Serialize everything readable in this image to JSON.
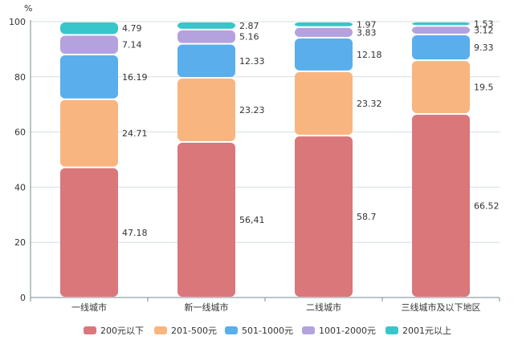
{
  "chart_data": {
    "type": "bar",
    "stacked": true,
    "ylabel": "%",
    "ylim": [
      0,
      100
    ],
    "yticks": [
      0,
      20,
      40,
      60,
      80,
      100
    ],
    "categories": [
      "一线城市",
      "新一线城市",
      "二线城市",
      "三线城市及以下地区"
    ],
    "series": [
      {
        "name": "200元以下",
        "color": "#D9777A",
        "values": [
          47.18,
          56.41,
          58.7,
          66.52
        ],
        "labels": [
          "47.18",
          "56,41",
          "58.7",
          "66.52"
        ]
      },
      {
        "name": "201-500元",
        "color": "#F9B580",
        "values": [
          24.71,
          23.23,
          23.32,
          19.5
        ],
        "labels": [
          "24.71",
          "23.23",
          "23.32",
          "19.5"
        ]
      },
      {
        "name": "501-1000元",
        "color": "#5AAEEC",
        "values": [
          16.19,
          12.33,
          12.18,
          9.33
        ],
        "labels": [
          "16.19",
          "12.33",
          "12.18",
          "9.33"
        ]
      },
      {
        "name": "1001-2000元",
        "color": "#B3A2DE",
        "values": [
          7.14,
          5.16,
          3.83,
          3.12
        ],
        "labels": [
          "7.14",
          "5.16",
          "3.83",
          "3.12"
        ]
      },
      {
        "name": "2001元以上",
        "color": "#37C6C9",
        "values": [
          4.79,
          2.87,
          1.97,
          1.53
        ],
        "labels": [
          "4.79",
          "2.87",
          "1.97",
          "1.53"
        ]
      }
    ],
    "legend_position": "bottom"
  }
}
